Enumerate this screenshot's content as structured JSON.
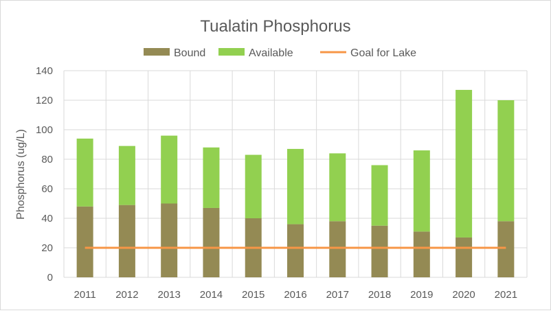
{
  "chart_data": {
    "type": "bar",
    "title": "Tualatin Phosphorus",
    "xlabel": "",
    "ylabel": "Phosphorus (ug/L)",
    "ylim": [
      0,
      140
    ],
    "yticks": [
      0,
      20,
      40,
      60,
      80,
      100,
      120,
      140
    ],
    "grid": true,
    "legend_position": "top",
    "stacked": true,
    "categories": [
      "2011",
      "2012",
      "2013",
      "2014",
      "2015",
      "2016",
      "2017",
      "2018",
      "2019",
      "2020",
      "2021"
    ],
    "series": [
      {
        "name": "Bound",
        "kind": "bar",
        "color": "#948a54",
        "values": [
          48,
          49,
          50,
          47,
          40,
          36,
          38,
          35,
          31,
          27,
          38
        ]
      },
      {
        "name": "Available",
        "kind": "bar",
        "color": "#92d050",
        "values": [
          46,
          40,
          46,
          41,
          43,
          51,
          46,
          41,
          55,
          100,
          82
        ]
      },
      {
        "name": "Goal for Lake",
        "kind": "line",
        "color": "#f79646",
        "values": [
          20,
          20,
          20,
          20,
          20,
          20,
          20,
          20,
          20,
          20,
          20
        ]
      }
    ]
  }
}
